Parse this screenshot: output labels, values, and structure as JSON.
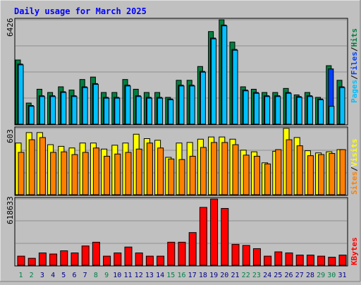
{
  "title": "Daily usage for March 2025",
  "colors": {
    "background": "#c0c0c0",
    "title": "#0000ff",
    "hits": "#008040",
    "files": "#0040ff",
    "pages": "#00c0ff",
    "visits": "#ffff00",
    "sites": "#ff8000",
    "kbytes": "#ff0000",
    "weekend": "#00804a",
    "weekday": "#00008b"
  },
  "chart_data": [
    {
      "type": "bar",
      "panel": "hits-files-pages",
      "max_label": "6426",
      "ylim": [
        0,
        6426
      ],
      "grid": true,
      "legend_labels": [
        "Pages",
        "/",
        "Files",
        "/",
        "Hits"
      ],
      "series": [
        {
          "name": "Hits",
          "values": [
            3950,
            1300,
            2150,
            1950,
            2300,
            2100,
            2750,
            2900,
            1950,
            1950,
            2750,
            2150,
            1950,
            1950,
            1650,
            2700,
            2700,
            3550,
            5700,
            6426,
            5050,
            2300,
            2150,
            1950,
            1950,
            2200,
            1800,
            1950,
            1650,
            3600,
            2700
          ]
        },
        {
          "name": "Files",
          "values": [
            3700,
            1150,
            1750,
            1750,
            2000,
            1750,
            2300,
            2500,
            1650,
            1650,
            2400,
            1750,
            1650,
            1650,
            1550,
            2400,
            2400,
            3250,
            5300,
            6100,
            4600,
            2100,
            1950,
            1750,
            1750,
            1950,
            1700,
            1750,
            1550,
            3400,
            2300
          ]
        },
        {
          "name": "Pages",
          "values": [
            3650,
            1100,
            1700,
            1700,
            1950,
            1700,
            2250,
            2450,
            1600,
            1600,
            2350,
            1700,
            1600,
            1600,
            1500,
            2350,
            2350,
            3200,
            5250,
            6050,
            4550,
            2050,
            1900,
            1700,
            1700,
            1900,
            1650,
            1700,
            1500,
            1100,
            2250
          ]
        }
      ],
      "categories": [
        "1",
        "2",
        "3",
        "4",
        "5",
        "6",
        "7",
        "8",
        "9",
        "10",
        "11",
        "12",
        "13",
        "14",
        "15",
        "16",
        "17",
        "18",
        "19",
        "20",
        "21",
        "22",
        "23",
        "24",
        "25",
        "26",
        "27",
        "28",
        "29",
        "30",
        "31"
      ]
    },
    {
      "type": "bar",
      "panel": "visits-sites",
      "max_label": "603",
      "ylim": [
        0,
        603
      ],
      "grid": true,
      "legend_labels": [
        "Sites",
        "/",
        "Visits"
      ],
      "series": [
        {
          "name": "Visits",
          "values": [
            470,
            565,
            565,
            455,
            440,
            425,
            470,
            470,
            415,
            450,
            470,
            550,
            510,
            495,
            340,
            470,
            475,
            505,
            525,
            525,
            505,
            405,
            390,
            290,
            395,
            603,
            520,
            400,
            380,
            390,
            410
          ]
        },
        {
          "name": "Sites",
          "values": [
            385,
            500,
            520,
            385,
            390,
            365,
            385,
            425,
            350,
            370,
            385,
            415,
            470,
            425,
            325,
            320,
            350,
            430,
            475,
            475,
            455,
            360,
            350,
            280,
            410,
            500,
            445,
            355,
            365,
            375,
            410
          ]
        }
      ]
    },
    {
      "type": "bar",
      "panel": "kbytes",
      "max_label": "618633",
      "ylim": [
        0,
        618633
      ],
      "grid": true,
      "legend_labels": [
        "KBytes"
      ],
      "series": [
        {
          "name": "KBytes",
          "values": [
            85000,
            65000,
            115000,
            105000,
            135000,
            115000,
            180000,
            215000,
            85000,
            115000,
            170000,
            115000,
            85000,
            85000,
            215000,
            215000,
            305000,
            540000,
            618633,
            530000,
            195000,
            185000,
            155000,
            85000,
            125000,
            115000,
            95000,
            95000,
            85000,
            75000,
            95000
          ]
        }
      ]
    }
  ],
  "days": [
    {
      "label": "1",
      "weekend": true
    },
    {
      "label": "2",
      "weekend": true
    },
    {
      "label": "3",
      "weekend": false
    },
    {
      "label": "4",
      "weekend": false
    },
    {
      "label": "5",
      "weekend": false
    },
    {
      "label": "6",
      "weekend": false
    },
    {
      "label": "7",
      "weekend": false
    },
    {
      "label": "8",
      "weekend": true
    },
    {
      "label": "9",
      "weekend": true
    },
    {
      "label": "10",
      "weekend": false
    },
    {
      "label": "11",
      "weekend": false
    },
    {
      "label": "12",
      "weekend": false
    },
    {
      "label": "13",
      "weekend": false
    },
    {
      "label": "14",
      "weekend": false
    },
    {
      "label": "15",
      "weekend": true
    },
    {
      "label": "16",
      "weekend": true
    },
    {
      "label": "17",
      "weekend": false
    },
    {
      "label": "18",
      "weekend": false
    },
    {
      "label": "19",
      "weekend": false
    },
    {
      "label": "20",
      "weekend": false
    },
    {
      "label": "21",
      "weekend": false
    },
    {
      "label": "22",
      "weekend": true
    },
    {
      "label": "23",
      "weekend": true
    },
    {
      "label": "24",
      "weekend": false
    },
    {
      "label": "25",
      "weekend": false
    },
    {
      "label": "26",
      "weekend": false
    },
    {
      "label": "27",
      "weekend": false
    },
    {
      "label": "28",
      "weekend": false
    },
    {
      "label": "29",
      "weekend": true
    },
    {
      "label": "30",
      "weekend": true
    },
    {
      "label": "31",
      "weekend": false
    }
  ]
}
